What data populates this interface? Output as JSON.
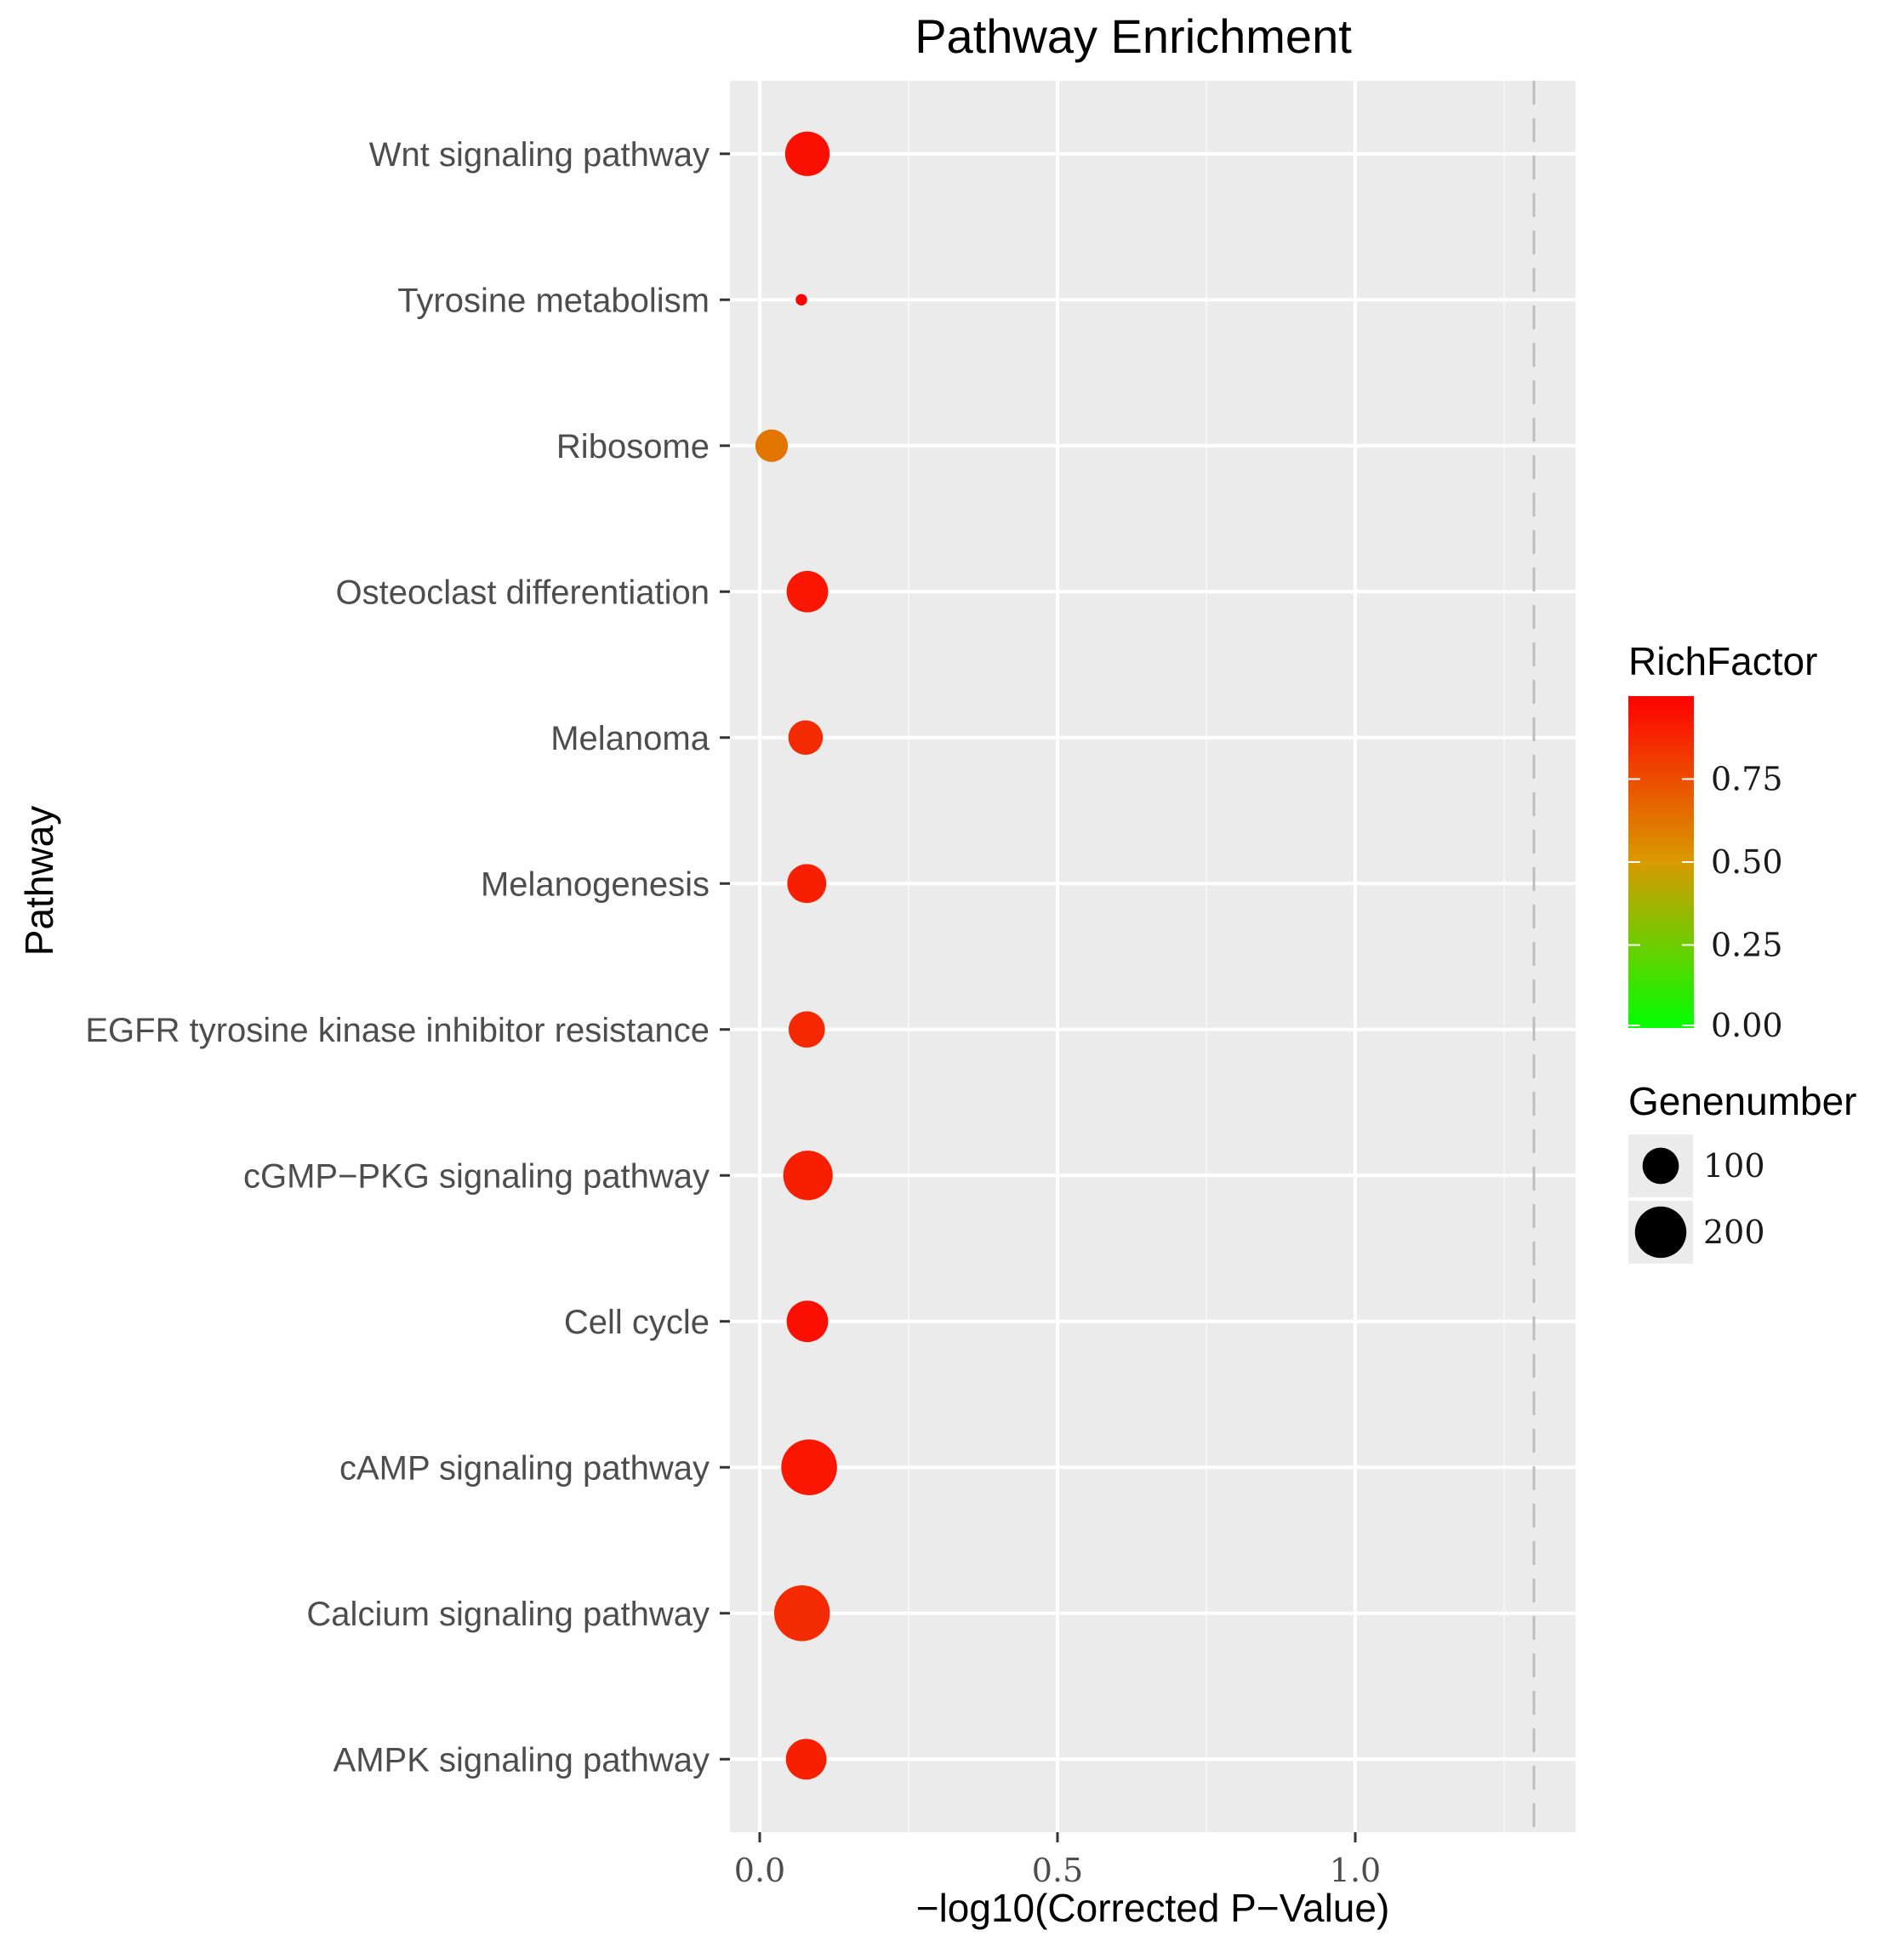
{
  "chart_data": {
    "type": "scatter",
    "title": "Pathway Enrichment",
    "xlabel": "−log10(Corrected P−Value)",
    "ylabel": "Pathway",
    "xlim": [
      -0.05,
      1.37
    ],
    "x_ticks": [
      {
        "value": 0.0,
        "label": "0.0"
      },
      {
        "value": 0.5,
        "label": "0.5"
      },
      {
        "value": 1.0,
        "label": "1.0"
      }
    ],
    "x_minor_gridlines": [
      0.25,
      0.75,
      1.25
    ],
    "reference_line": {
      "x": 1.3,
      "style": "dashed",
      "color": "#bdbdbd"
    },
    "grid": true,
    "panel_background": "#ebebeb",
    "points": [
      {
        "pathway": "Wnt signaling pathway",
        "x": 0.08,
        "genenumber": 150,
        "richfactor": 0.95
      },
      {
        "pathway": "Tyrosine metabolism",
        "x": 0.07,
        "genenumber": 10,
        "richfactor": 1.0
      },
      {
        "pathway": "Ribosome",
        "x": 0.02,
        "genenumber": 80,
        "richfactor": 0.62
      },
      {
        "pathway": "Osteoclast differentiation",
        "x": 0.08,
        "genenumber": 130,
        "richfactor": 0.93
      },
      {
        "pathway": "Melanoma",
        "x": 0.077,
        "genenumber": 90,
        "richfactor": 0.86
      },
      {
        "pathway": "Melanogenesis",
        "x": 0.079,
        "genenumber": 115,
        "richfactor": 0.9
      },
      {
        "pathway": "EGFR tyrosine kinase inhibitor resistance",
        "x": 0.079,
        "genenumber": 100,
        "richfactor": 0.87
      },
      {
        "pathway": "cGMP−PKG signaling pathway",
        "x": 0.081,
        "genenumber": 185,
        "richfactor": 0.9
      },
      {
        "pathway": "Cell cycle",
        "x": 0.08,
        "genenumber": 130,
        "richfactor": 0.95
      },
      {
        "pathway": "cAMP signaling pathway",
        "x": 0.083,
        "genenumber": 235,
        "richfactor": 0.93
      },
      {
        "pathway": "Calcium signaling pathway",
        "x": 0.071,
        "genenumber": 235,
        "richfactor": 0.86
      },
      {
        "pathway": "AMPK signaling pathway",
        "x": 0.078,
        "genenumber": 125,
        "richfactor": 0.9
      }
    ],
    "color_legend": {
      "title": "RichFactor",
      "range": [
        0,
        1
      ],
      "low_color": "#00ff00",
      "high_color": "#ff0000",
      "ticks": [
        {
          "value": 0.75,
          "label": "0.75"
        },
        {
          "value": 0.5,
          "label": "0.50"
        },
        {
          "value": 0.25,
          "label": "0.25"
        },
        {
          "value": 0.0,
          "label": "0.00"
        }
      ]
    },
    "size_legend": {
      "title": "Genenumber",
      "entries": [
        {
          "value": 100,
          "label": "100"
        },
        {
          "value": 200,
          "label": "200"
        }
      ]
    }
  }
}
